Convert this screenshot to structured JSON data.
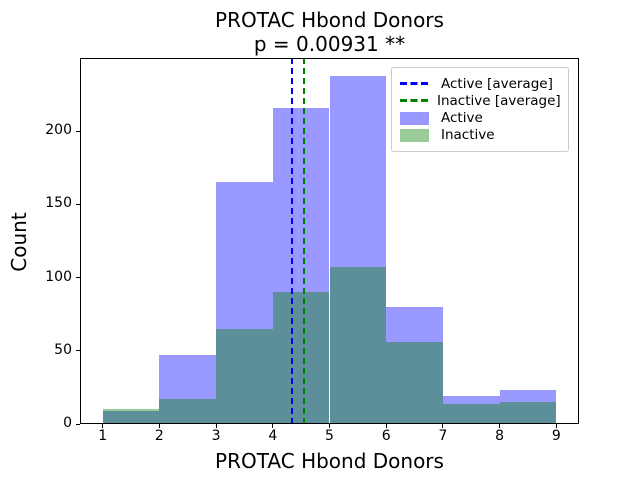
{
  "chart_data": {
    "type": "histogram",
    "title": "PROTAC Hbond Donors",
    "subtitle": "p = 0.00931 **",
    "xlabel": "PROTAC Hbond Donors",
    "ylabel": "Count",
    "bin_edges": [
      1,
      2,
      3,
      4,
      5,
      6,
      7,
      8,
      9
    ],
    "series": [
      {
        "name": "Active",
        "counts": [
          9,
          47,
          165,
          216,
          238,
          80,
          19,
          23
        ],
        "average": 4.33,
        "color": "#0000ff",
        "fill": "rgba(0,0,255,0.4)"
      },
      {
        "name": "Inactive",
        "counts": [
          10,
          17,
          65,
          90,
          107,
          56,
          14,
          15
        ],
        "average": 4.55,
        "color": "#008000",
        "fill": "rgba(0,128,0,0.4)"
      }
    ],
    "xlim": [
      0.6,
      9.4
    ],
    "ylim": [
      0,
      250
    ],
    "xticks": [
      1,
      2,
      3,
      4,
      5,
      6,
      7,
      8,
      9
    ],
    "yticks": [
      0,
      50,
      100,
      150,
      200
    ],
    "grid": false,
    "legend_position": "upper right",
    "legend": [
      {
        "label": "Active [average]",
        "sample": "dashed-line",
        "color": "#0000ff"
      },
      {
        "label": "Inactive [average]",
        "sample": "dashed-line",
        "color": "#008000"
      },
      {
        "label": "Active",
        "sample": "patch",
        "color": "rgba(0,0,255,0.4)"
      },
      {
        "label": "Inactive",
        "sample": "patch",
        "color": "rgba(0,128,0,0.4)"
      }
    ]
  }
}
